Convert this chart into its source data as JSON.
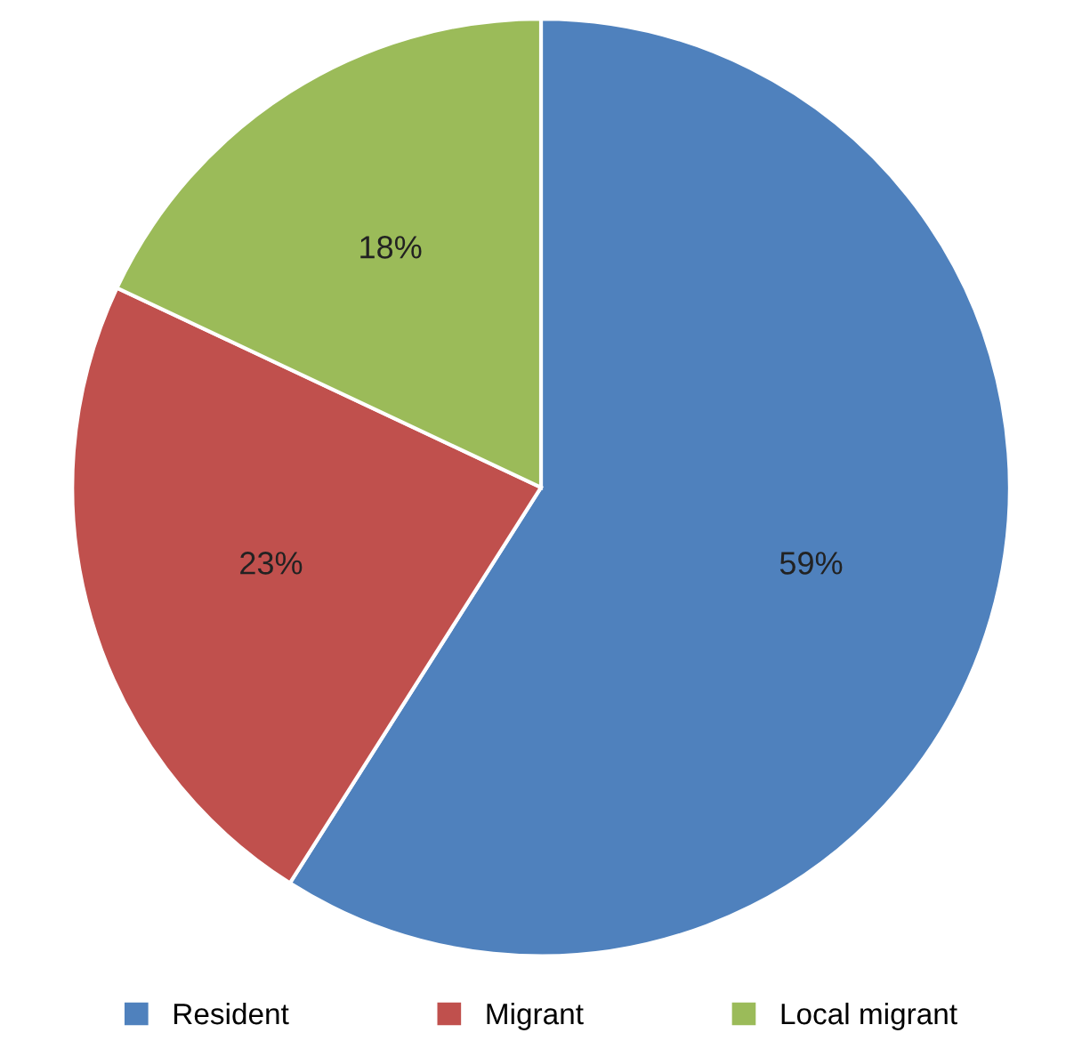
{
  "chart_data": {
    "type": "pie",
    "categories": [
      "Resident",
      "Migrant",
      "Local migrant"
    ],
    "values": [
      59,
      23,
      18
    ],
    "colors": [
      "#4f81bd",
      "#c0504d",
      "#9bbb59"
    ],
    "value_labels": [
      "59%",
      "23%",
      "18%"
    ],
    "legend": "bottom"
  }
}
